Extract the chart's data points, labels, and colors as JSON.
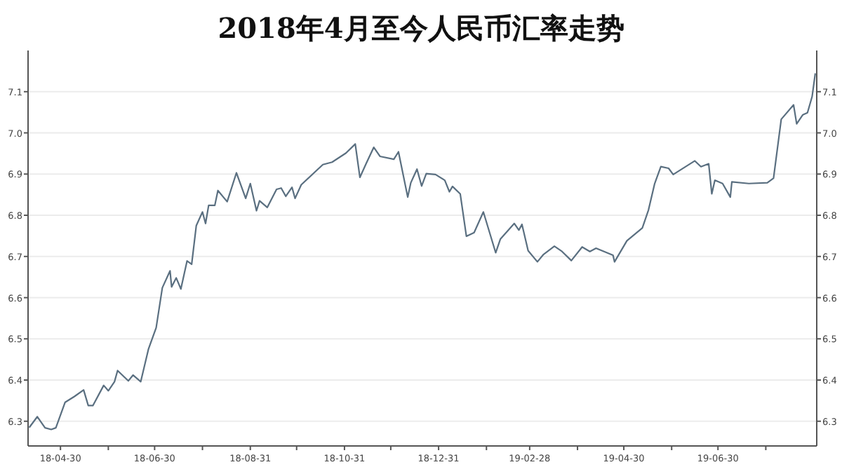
{
  "chart_data": {
    "type": "line",
    "title": "2018年4月至今人民币汇率走势",
    "x": [
      "2018-04-10",
      "2018-04-15",
      "2018-04-20",
      "2018-04-24",
      "2018-04-27",
      "2018-05-03",
      "2018-05-09",
      "2018-05-15",
      "2018-05-18",
      "2018-05-21",
      "2018-05-28",
      "2018-05-31",
      "2018-06-04",
      "2018-06-06",
      "2018-06-13",
      "2018-06-16",
      "2018-06-21",
      "2018-06-26",
      "2018-07-01",
      "2018-07-05",
      "2018-07-10",
      "2018-07-11",
      "2018-07-14",
      "2018-07-17",
      "2018-07-21",
      "2018-07-24",
      "2018-07-27",
      "2018-07-31",
      "2018-08-02",
      "2018-08-04",
      "2018-08-08",
      "2018-08-10",
      "2018-08-16",
      "2018-08-22",
      "2018-08-28",
      "2018-08-31",
      "2018-09-04",
      "2018-09-06",
      "2018-09-11",
      "2018-09-17",
      "2018-09-20",
      "2018-09-23",
      "2018-09-27",
      "2018-09-29",
      "2018-10-03",
      "2018-10-17",
      "2018-10-23",
      "2018-11-01",
      "2018-11-07",
      "2018-11-10",
      "2018-11-14",
      "2018-11-19",
      "2018-11-23",
      "2018-12-02",
      "2018-12-05",
      "2018-12-11",
      "2018-12-13",
      "2018-12-17",
      "2018-12-20",
      "2018-12-23",
      "2018-12-29",
      "2019-01-04",
      "2019-01-07",
      "2019-01-09",
      "2019-01-14",
      "2019-01-18",
      "2019-01-23",
      "2019-01-29",
      "2019-02-06",
      "2019-02-09",
      "2019-02-18",
      "2019-02-21",
      "2019-02-23",
      "2019-02-27",
      "2019-03-05",
      "2019-03-09",
      "2019-03-16",
      "2019-03-21",
      "2019-03-27",
      "2019-04-03",
      "2019-04-08",
      "2019-04-12",
      "2019-04-23",
      "2019-04-24",
      "2019-05-02",
      "2019-05-12",
      "2019-05-16",
      "2019-05-20",
      "2019-05-24",
      "2019-05-29",
      "2019-06-01",
      "2019-06-15",
      "2019-06-19",
      "2019-06-24",
      "2019-06-26",
      "2019-06-28",
      "2019-07-03",
      "2019-07-08",
      "2019-07-09",
      "2019-07-20",
      "2019-08-01",
      "2019-08-05",
      "2019-08-10",
      "2019-08-18",
      "2019-08-20",
      "2019-08-24",
      "2019-08-27",
      "2019-08-30",
      "2019-09-01"
    ],
    "series": [
      {
        "color": "#5a6f80",
        "values": [
          6.286,
          6.311,
          6.284,
          6.28,
          6.284,
          6.346,
          6.36,
          6.376,
          6.338,
          6.338,
          6.387,
          6.374,
          6.396,
          6.423,
          6.398,
          6.412,
          6.396,
          6.475,
          6.527,
          6.624,
          6.665,
          6.626,
          6.648,
          6.621,
          6.689,
          6.681,
          6.775,
          6.808,
          6.78,
          6.824,
          6.824,
          6.86,
          6.833,
          6.903,
          6.841,
          6.877,
          6.811,
          6.835,
          6.819,
          6.863,
          6.866,
          6.846,
          6.868,
          6.841,
          6.874,
          6.923,
          6.929,
          6.951,
          6.973,
          6.892,
          6.925,
          6.965,
          6.943,
          6.936,
          6.954,
          6.844,
          6.879,
          6.912,
          6.871,
          6.901,
          6.899,
          6.885,
          6.857,
          6.87,
          6.852,
          6.749,
          6.758,
          6.808,
          6.709,
          6.742,
          6.78,
          6.764,
          6.778,
          6.714,
          6.687,
          6.705,
          6.725,
          6.712,
          6.69,
          6.723,
          6.712,
          6.72,
          6.703,
          6.687,
          6.738,
          6.769,
          6.813,
          6.877,
          6.918,
          6.914,
          6.899,
          6.932,
          6.918,
          6.925,
          6.852,
          6.885,
          6.877,
          6.844,
          6.881,
          6.877,
          6.879,
          6.89,
          7.033,
          7.068,
          7.022,
          7.044,
          7.049,
          7.088,
          7.143
        ]
      }
    ],
    "xlim": [
      "2018-04-09",
      "2019-09-02"
    ],
    "xticks": [
      {
        "value": "2018-04-30",
        "label": "18-04-30"
      },
      {
        "value": "2018-05-31",
        "label": null
      },
      {
        "value": "2018-06-30",
        "label": "18-06-30"
      },
      {
        "value": "2018-07-31",
        "label": null
      },
      {
        "value": "2018-08-31",
        "label": "18-08-31"
      },
      {
        "value": "2018-09-30",
        "label": null
      },
      {
        "value": "2018-10-31",
        "label": "18-10-31"
      },
      {
        "value": "2018-11-30",
        "label": null
      },
      {
        "value": "2018-12-31",
        "label": "18-12-31"
      },
      {
        "value": "2019-01-31",
        "label": null
      },
      {
        "value": "2019-02-28",
        "label": "19-02-28"
      },
      {
        "value": "2019-03-31",
        "label": null
      },
      {
        "value": "2019-04-30",
        "label": "19-04-30"
      },
      {
        "value": "2019-05-31",
        "label": null
      },
      {
        "value": "2019-06-30",
        "label": "19-06-30"
      },
      {
        "value": "2019-07-31",
        "label": null
      }
    ],
    "ylim": [
      6.24,
      7.2
    ],
    "yticks": [
      6.3,
      6.4,
      6.5,
      6.6,
      6.7,
      6.8,
      6.9,
      {
        "value": 7.0,
        "label": "7.0"
      },
      7.1
    ],
    "y2lim": [
      6.24,
      7.2
    ],
    "y2ticks": [
      6.3,
      6.4,
      6.5,
      6.6,
      6.7,
      6.8,
      6.9,
      {
        "value": 7.0,
        "label": "7.0"
      },
      7.1
    ],
    "grid": "y"
  }
}
